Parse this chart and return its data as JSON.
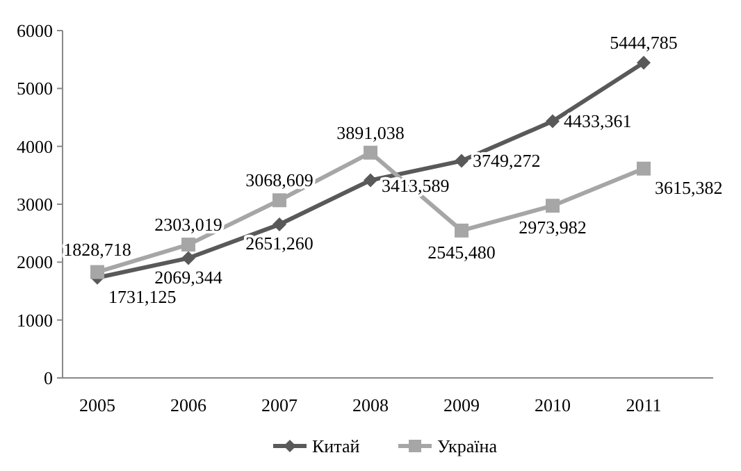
{
  "chart_data": {
    "type": "line",
    "categories": [
      "2005",
      "2006",
      "2007",
      "2008",
      "2009",
      "2010",
      "2011"
    ],
    "series": [
      {
        "name": "Китай",
        "color": "#595959",
        "marker": "diamond",
        "values": [
          1731.125,
          2069.344,
          2651.26,
          3413.589,
          3749.272,
          4433.361,
          5444.785
        ],
        "value_labels": [
          "1731,125",
          "2069,344",
          "2651,260",
          "3413,589",
          "3749,272",
          "4433,361",
          "5444,785"
        ]
      },
      {
        "name": "Україна",
        "color": "#a6a6a6",
        "marker": "square",
        "values": [
          1828.718,
          2303.019,
          3068.609,
          3891.038,
          2545.48,
          2973.982,
          3615.382
        ],
        "value_labels": [
          "1828,718",
          "2303,019",
          "3068,609",
          "3891,038",
          "2545,480",
          "2973,982",
          "3615,382"
        ]
      }
    ],
    "ylim": [
      0,
      6000
    ],
    "yticks": [
      0,
      1000,
      2000,
      3000,
      4000,
      5000,
      6000
    ],
    "grid": false,
    "legend": "bottom"
  }
}
